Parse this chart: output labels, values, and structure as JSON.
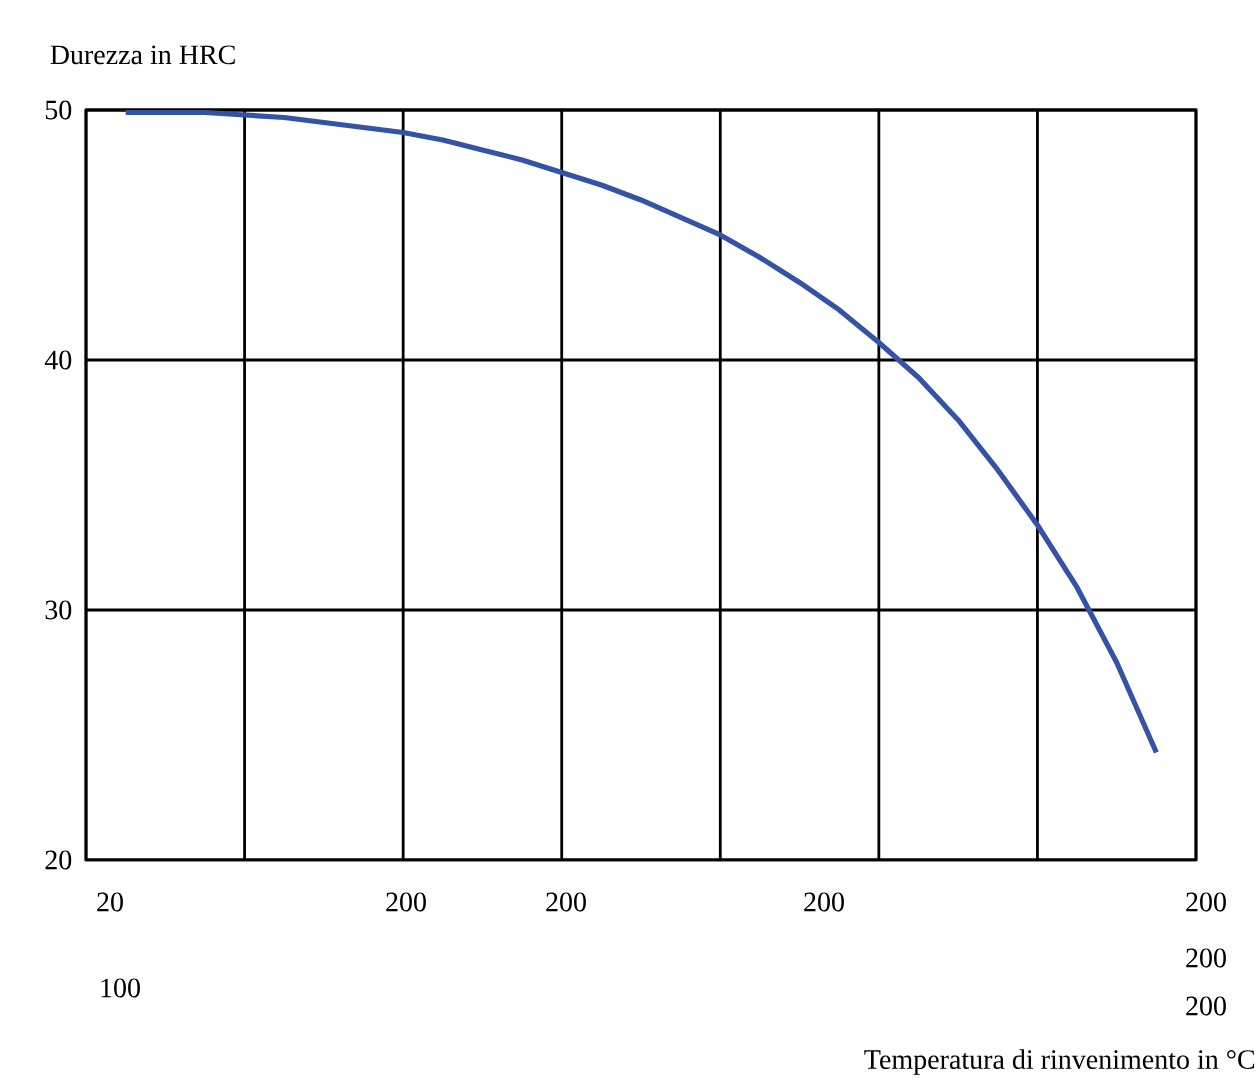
{
  "chart_data": {
    "type": "line",
    "ylabel": "Durezza in HRC",
    "annotations": [
      "20",
      "200",
      "200",
      "200",
      "200",
      "200",
      "200",
      "100",
      "Temperatura di rinvenimento in °C"
    ],
    "categories": [
      null,
      null,
      null,
      null,
      null,
      null,
      null,
      null,
      null,
      null,
      null,
      null,
      null,
      null,
      null,
      null,
      null,
      null,
      null,
      null,
      null,
      null,
      null,
      null,
      null,
      null,
      null
    ],
    "ylim": [
      20,
      50
    ],
    "yticks": [
      20,
      30,
      40,
      50
    ],
    "grid": true,
    "series": [
      {
        "color": "#3553a5",
        "values": [
          49.9,
          49.9,
          49.9,
          49.8,
          49.7,
          49.5,
          49.3,
          49.1,
          48.8,
          48.4,
          48.0,
          47.5,
          47.0,
          46.4,
          45.7,
          45.0,
          44.1,
          43.1,
          42.0,
          40.7,
          39.3,
          37.6,
          35.6,
          33.4,
          30.9,
          27.9,
          24.3
        ]
      }
    ]
  }
}
